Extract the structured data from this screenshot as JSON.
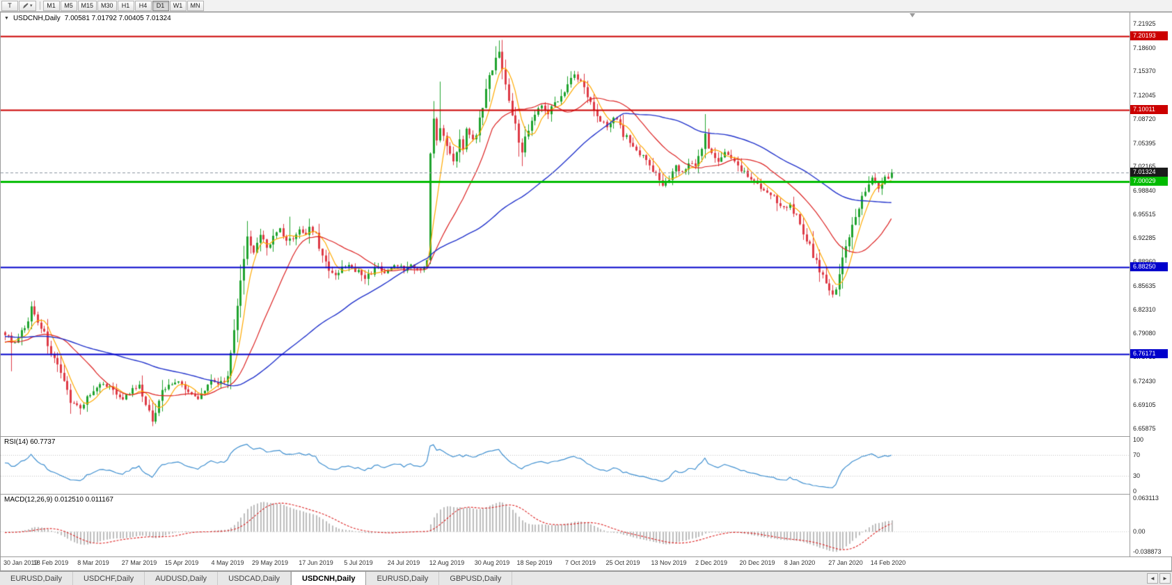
{
  "toolbar": {
    "tool_button": "T",
    "dropdown_icon": "▾",
    "timeframes": [
      "M1",
      "M5",
      "M15",
      "M30",
      "H1",
      "H4",
      "D1",
      "W1",
      "MN"
    ],
    "active_timeframe": "D1"
  },
  "chart_header": {
    "collapse_icon": "▼",
    "symbol_text": "USDCNH,Daily",
    "ohlc_text": "7.00581 7.01792 7.00405 7.01324"
  },
  "price_axis_labels": [
    "7.21925",
    "7.18600",
    "7.15370",
    "7.12045",
    "7.08720",
    "7.05395",
    "7.02165",
    "6.98840",
    "6.95515",
    "6.92285",
    "6.88960",
    "6.85635",
    "6.82310",
    "6.79080",
    "6.75755",
    "6.72430",
    "6.69105",
    "6.65875"
  ],
  "price_tags": [
    {
      "price": 7.20193,
      "label": "7.20193",
      "color": "#cc0000",
      "type": "hline",
      "width": 2
    },
    {
      "price": 7.10011,
      "label": "7.10011",
      "color": "#cc0000",
      "type": "hline",
      "width": 2
    },
    {
      "price": 7.01324,
      "label": "7.01324",
      "color": "#1a1a1a",
      "type": "bid",
      "width": 1
    },
    {
      "price": 7.00029,
      "label": "7.00029",
      "color": "#00bb00",
      "type": "hline",
      "width": 3
    },
    {
      "price": 6.8825,
      "label": "6.88250",
      "color": "#0000cc",
      "type": "hline",
      "width": 2
    },
    {
      "price": 6.76171,
      "label": "6.76171",
      "color": "#0000cc",
      "type": "hline",
      "width": 2
    }
  ],
  "rsi": {
    "title": "RSI(14) 60.7737",
    "current_value": 60.7737,
    "axis_labels": [
      "100",
      "70",
      "30",
      "0"
    ],
    "upper_level": 70,
    "lower_level": 30
  },
  "macd": {
    "title": "MACD(12,26,9) 0.012510 0.011167",
    "current_macd": 0.01251,
    "current_signal": 0.011167,
    "axis_labels": [
      "0.063113",
      "0.00",
      "-0.038873"
    ],
    "max": 0.063113,
    "min": -0.038873
  },
  "date_axis": [
    "30 Jan 2019",
    "18 Feb 2019",
    "8 Mar 2019",
    "27 Mar 2019",
    "15 Apr 2019",
    "4 May 2019",
    "29 May 2019",
    "17 Jun 2019",
    "5 Jul 2019",
    "24 Jul 2019",
    "12 Aug 2019",
    "30 Aug 2019",
    "18 Sep 2019",
    "7 Oct 2019",
    "25 Oct 2019",
    "13 Nov 2019",
    "2 Dec 2019",
    "20 Dec 2019",
    "8 Jan 2020",
    "27 Jan 2020",
    "14 Feb 2020"
  ],
  "tab_bar": {
    "scroll_left_icon": "◄",
    "scroll_right_icon": "►",
    "tabs": [
      {
        "label": "EURUSD,Daily",
        "active": false
      },
      {
        "label": "USDCHF,Daily",
        "active": false
      },
      {
        "label": "AUDUSD,Daily",
        "active": false
      },
      {
        "label": "USDCAD,Daily",
        "active": false
      },
      {
        "label": "USDCNH,Daily",
        "active": true
      },
      {
        "label": "EURUSD,Daily",
        "active": false
      },
      {
        "label": "GBPUSD,Daily",
        "active": false
      }
    ]
  },
  "colors": {
    "candle_up": "#1fa32e",
    "candle_down": "#de3a45",
    "ma_fast": "#ffaa00",
    "ma_mid": "#dd2222",
    "ma_slow": "#2233cc",
    "rsi_line": "#3e8fd0",
    "rsi_level": "#c0c0c0",
    "macd_histogram": "#bdbdbd",
    "macd_signal": "#dd2222",
    "bid_line": "#8a93a0"
  },
  "chart_data": {
    "type": "candlestick",
    "symbol": "USDCNH",
    "timeframe": "Daily",
    "ohlc_current": {
      "open": 7.00581,
      "high": 7.01792,
      "low": 7.00405,
      "close": 7.01324
    },
    "num_candles": 272,
    "date_label_indices": [
      0,
      14,
      27,
      41,
      54,
      68,
      81,
      95,
      108,
      122,
      135,
      149,
      162,
      176,
      189,
      203,
      216,
      230,
      243,
      257,
      270
    ],
    "y_axis_range": {
      "top_label": 7.21925,
      "bottom_label": 6.65875
    },
    "hlines": [
      7.20193,
      7.10011,
      7.00029,
      6.8825,
      6.76171
    ],
    "moving_averages": [
      {
        "name": "fast",
        "period": 6
      },
      {
        "name": "mid",
        "period": 20
      },
      {
        "name": "slow",
        "period": 60
      }
    ],
    "indicators": {
      "rsi_period": 14,
      "macd_params": [
        12,
        26,
        9
      ]
    },
    "close_waypoints": [
      [
        0,
        6.788
      ],
      [
        3,
        6.776
      ],
      [
        6,
        6.796
      ],
      [
        8,
        6.826
      ],
      [
        11,
        6.8
      ],
      [
        14,
        6.765
      ],
      [
        17,
        6.73
      ],
      [
        20,
        6.7
      ],
      [
        23,
        6.686
      ],
      [
        25,
        6.703
      ],
      [
        27,
        6.708
      ],
      [
        30,
        6.722
      ],
      [
        33,
        6.712
      ],
      [
        36,
        6.7
      ],
      [
        39,
        6.712
      ],
      [
        41,
        6.716
      ],
      [
        43,
        6.69
      ],
      [
        45,
        6.67
      ],
      [
        47,
        6.7
      ],
      [
        49,
        6.716
      ],
      [
        52,
        6.724
      ],
      [
        54,
        6.72
      ],
      [
        57,
        6.704
      ],
      [
        59,
        6.7
      ],
      [
        61,
        6.712
      ],
      [
        63,
        6.728
      ],
      [
        65,
        6.72
      ],
      [
        67,
        6.728
      ],
      [
        68,
        6.736
      ],
      [
        69,
        6.762
      ],
      [
        70,
        6.792
      ],
      [
        71,
        6.824
      ],
      [
        72,
        6.862
      ],
      [
        73,
        6.898
      ],
      [
        74,
        6.92
      ],
      [
        75,
        6.908
      ],
      [
        76,
        6.9
      ],
      [
        77,
        6.916
      ],
      [
        78,
        6.928
      ],
      [
        80,
        6.91
      ],
      [
        82,
        6.922
      ],
      [
        84,
        6.934
      ],
      [
        86,
        6.916
      ],
      [
        88,
        6.924
      ],
      [
        90,
        6.934
      ],
      [
        92,
        6.926
      ],
      [
        93,
        6.938
      ],
      [
        95,
        6.928
      ],
      [
        96,
        6.912
      ],
      [
        97,
        6.898
      ],
      [
        98,
        6.886
      ],
      [
        99,
        6.876
      ],
      [
        101,
        6.87
      ],
      [
        103,
        6.88
      ],
      [
        105,
        6.886
      ],
      [
        107,
        6.874
      ],
      [
        108,
        6.878
      ],
      [
        110,
        6.866
      ],
      [
        112,
        6.876
      ],
      [
        114,
        6.884
      ],
      [
        116,
        6.872
      ],
      [
        118,
        6.88
      ],
      [
        120,
        6.886
      ],
      [
        122,
        6.878
      ],
      [
        124,
        6.886
      ],
      [
        126,
        6.878
      ],
      [
        128,
        6.884
      ],
      [
        129,
        6.896
      ],
      [
        130,
        7.038
      ],
      [
        131,
        7.082
      ],
      [
        132,
        7.056
      ],
      [
        133,
        7.072
      ],
      [
        134,
        7.06
      ],
      [
        135,
        7.05
      ],
      [
        136,
        7.036
      ],
      [
        137,
        7.028
      ],
      [
        138,
        7.044
      ],
      [
        139,
        7.058
      ],
      [
        140,
        7.048
      ],
      [
        141,
        7.072
      ],
      [
        142,
        7.064
      ],
      [
        143,
        7.056
      ],
      [
        144,
        7.07
      ],
      [
        145,
        7.086
      ],
      [
        146,
        7.098
      ],
      [
        147,
        7.132
      ],
      [
        148,
        7.152
      ],
      [
        149,
        7.158
      ],
      [
        150,
        7.172
      ],
      [
        151,
        7.178
      ],
      [
        152,
        7.16
      ],
      [
        153,
        7.138
      ],
      [
        154,
        7.118
      ],
      [
        155,
        7.098
      ],
      [
        156,
        7.076
      ],
      [
        157,
        7.058
      ],
      [
        158,
        7.042
      ],
      [
        159,
        7.06
      ],
      [
        160,
        7.076
      ],
      [
        162,
        7.094
      ],
      [
        164,
        7.106
      ],
      [
        166,
        7.096
      ],
      [
        168,
        7.108
      ],
      [
        170,
        7.122
      ],
      [
        172,
        7.136
      ],
      [
        174,
        7.148
      ],
      [
        176,
        7.138
      ],
      [
        178,
        7.118
      ],
      [
        180,
        7.104
      ],
      [
        182,
        7.088
      ],
      [
        184,
        7.076
      ],
      [
        186,
        7.09
      ],
      [
        188,
        7.078
      ],
      [
        189,
        7.068
      ],
      [
        191,
        7.056
      ],
      [
        193,
        7.044
      ],
      [
        195,
        7.036
      ],
      [
        197,
        7.022
      ],
      [
        199,
        7.008
      ],
      [
        201,
        6.996
      ],
      [
        203,
        7.008
      ],
      [
        205,
        7.022
      ],
      [
        207,
        7.012
      ],
      [
        209,
        7.026
      ],
      [
        211,
        7.02
      ],
      [
        213,
        7.042
      ],
      [
        214,
        7.066
      ],
      [
        215,
        7.048
      ],
      [
        216,
        7.038
      ],
      [
        218,
        7.03
      ],
      [
        220,
        7.04
      ],
      [
        222,
        7.034
      ],
      [
        224,
        7.024
      ],
      [
        226,
        7.014
      ],
      [
        228,
        7.006
      ],
      [
        230,
        6.998
      ],
      [
        232,
        6.99
      ],
      [
        234,
        6.982
      ],
      [
        236,
        6.974
      ],
      [
        238,
        6.964
      ],
      [
        240,
        6.97
      ],
      [
        242,
        6.952
      ],
      [
        243,
        6.94
      ],
      [
        245,
        6.92
      ],
      [
        247,
        6.9
      ],
      [
        249,
        6.878
      ],
      [
        251,
        6.858
      ],
      [
        253,
        6.846
      ],
      [
        254,
        6.852
      ],
      [
        255,
        6.872
      ],
      [
        256,
        6.892
      ],
      [
        257,
        6.91
      ],
      [
        258,
        6.924
      ],
      [
        259,
        6.938
      ],
      [
        260,
        6.95
      ],
      [
        261,
        6.962
      ],
      [
        262,
        6.975
      ],
      [
        263,
        6.988
      ],
      [
        264,
        6.998
      ],
      [
        265,
        7.006
      ],
      [
        266,
        6.998
      ],
      [
        267,
        6.99
      ],
      [
        268,
        6.996
      ],
      [
        269,
        7.004
      ],
      [
        270,
        7.008
      ],
      [
        271,
        7.01324
      ]
    ],
    "key_extremes": [
      {
        "index": 2,
        "low": 6.738
      },
      {
        "index": 23,
        "low": 6.678
      },
      {
        "index": 45,
        "low": 6.662
      },
      {
        "index": 74,
        "high": 6.946
      },
      {
        "index": 87,
        "high": 6.952
      },
      {
        "index": 131,
        "high": 7.112
      },
      {
        "index": 133,
        "high": 7.139
      },
      {
        "index": 150,
        "high": 7.188
      },
      {
        "index": 151,
        "high": 7.196
      },
      {
        "index": 158,
        "low": 7.022
      },
      {
        "index": 214,
        "high": 7.094
      },
      {
        "index": 252,
        "low": 6.843
      },
      {
        "index": 253,
        "low": 6.84
      }
    ]
  }
}
